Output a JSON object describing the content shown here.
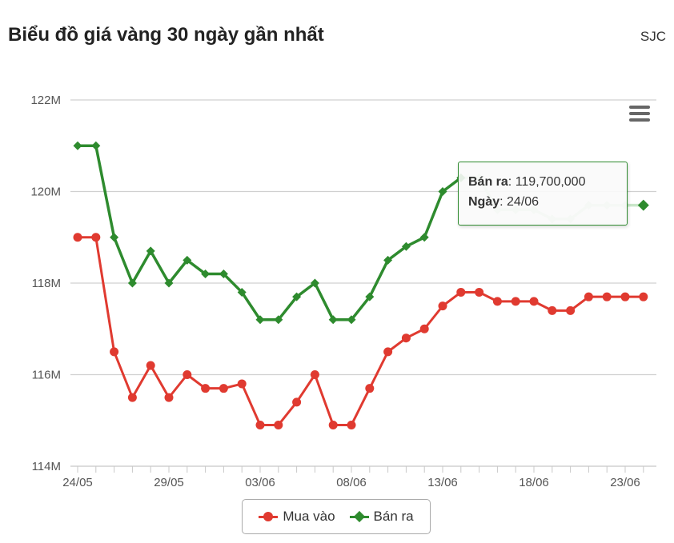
{
  "header": {
    "title": "Biểu đồ giá vàng 30 ngày gần nhất",
    "brand": "SJC"
  },
  "colors": {
    "buy": "#e03a30",
    "sell": "#2e8b2e",
    "grid": "#d0d0d0",
    "axis_text": "#555555"
  },
  "tooltip": {
    "series_label": "Bán ra",
    "value": "119,700,000",
    "date_label": "Ngày",
    "date": "24/06"
  },
  "chart_data": {
    "type": "line",
    "title": "Biểu đồ giá vàng 30 ngày gần nhất",
    "xlabel": "",
    "ylabel": "",
    "ylim": [
      114,
      122
    ],
    "y_ticks": [
      114,
      116,
      118,
      120,
      122
    ],
    "y_tick_labels": [
      "114M",
      "116M",
      "118M",
      "120M",
      "122M"
    ],
    "x_tick_labels": [
      {
        "index": 0,
        "label": "24/05"
      },
      {
        "index": 5,
        "label": "29/05"
      },
      {
        "index": 10,
        "label": "03/06"
      },
      {
        "index": 15,
        "label": "08/06"
      },
      {
        "index": 20,
        "label": "13/06"
      },
      {
        "index": 25,
        "label": "18/06"
      },
      {
        "index": 30,
        "label": "23/06"
      }
    ],
    "grid": true,
    "legend_position": "bottom",
    "highlight_index": 31,
    "series": [
      {
        "name": "Mua vào",
        "marker": "circle",
        "values": [
          119.0,
          119.0,
          116.5,
          115.5,
          116.2,
          115.5,
          116.0,
          115.7,
          115.7,
          115.8,
          114.9,
          114.9,
          115.4,
          116.0,
          114.9,
          114.9,
          115.7,
          116.5,
          116.8,
          117.0,
          117.5,
          117.8,
          117.8,
          117.6,
          117.6,
          117.6,
          117.4,
          117.4,
          117.7,
          117.7,
          117.7,
          117.7
        ]
      },
      {
        "name": "Bán ra",
        "marker": "diamond",
        "values": [
          121.0,
          121.0,
          119.0,
          118.0,
          118.7,
          118.0,
          118.5,
          118.2,
          118.2,
          117.8,
          117.2,
          117.2,
          117.7,
          118.0,
          117.2,
          117.2,
          117.7,
          118.5,
          118.8,
          119.0,
          120.0,
          120.3,
          120.3,
          119.6,
          119.6,
          119.6,
          119.4,
          119.4,
          119.7,
          119.7,
          119.7,
          119.7
        ]
      }
    ]
  }
}
